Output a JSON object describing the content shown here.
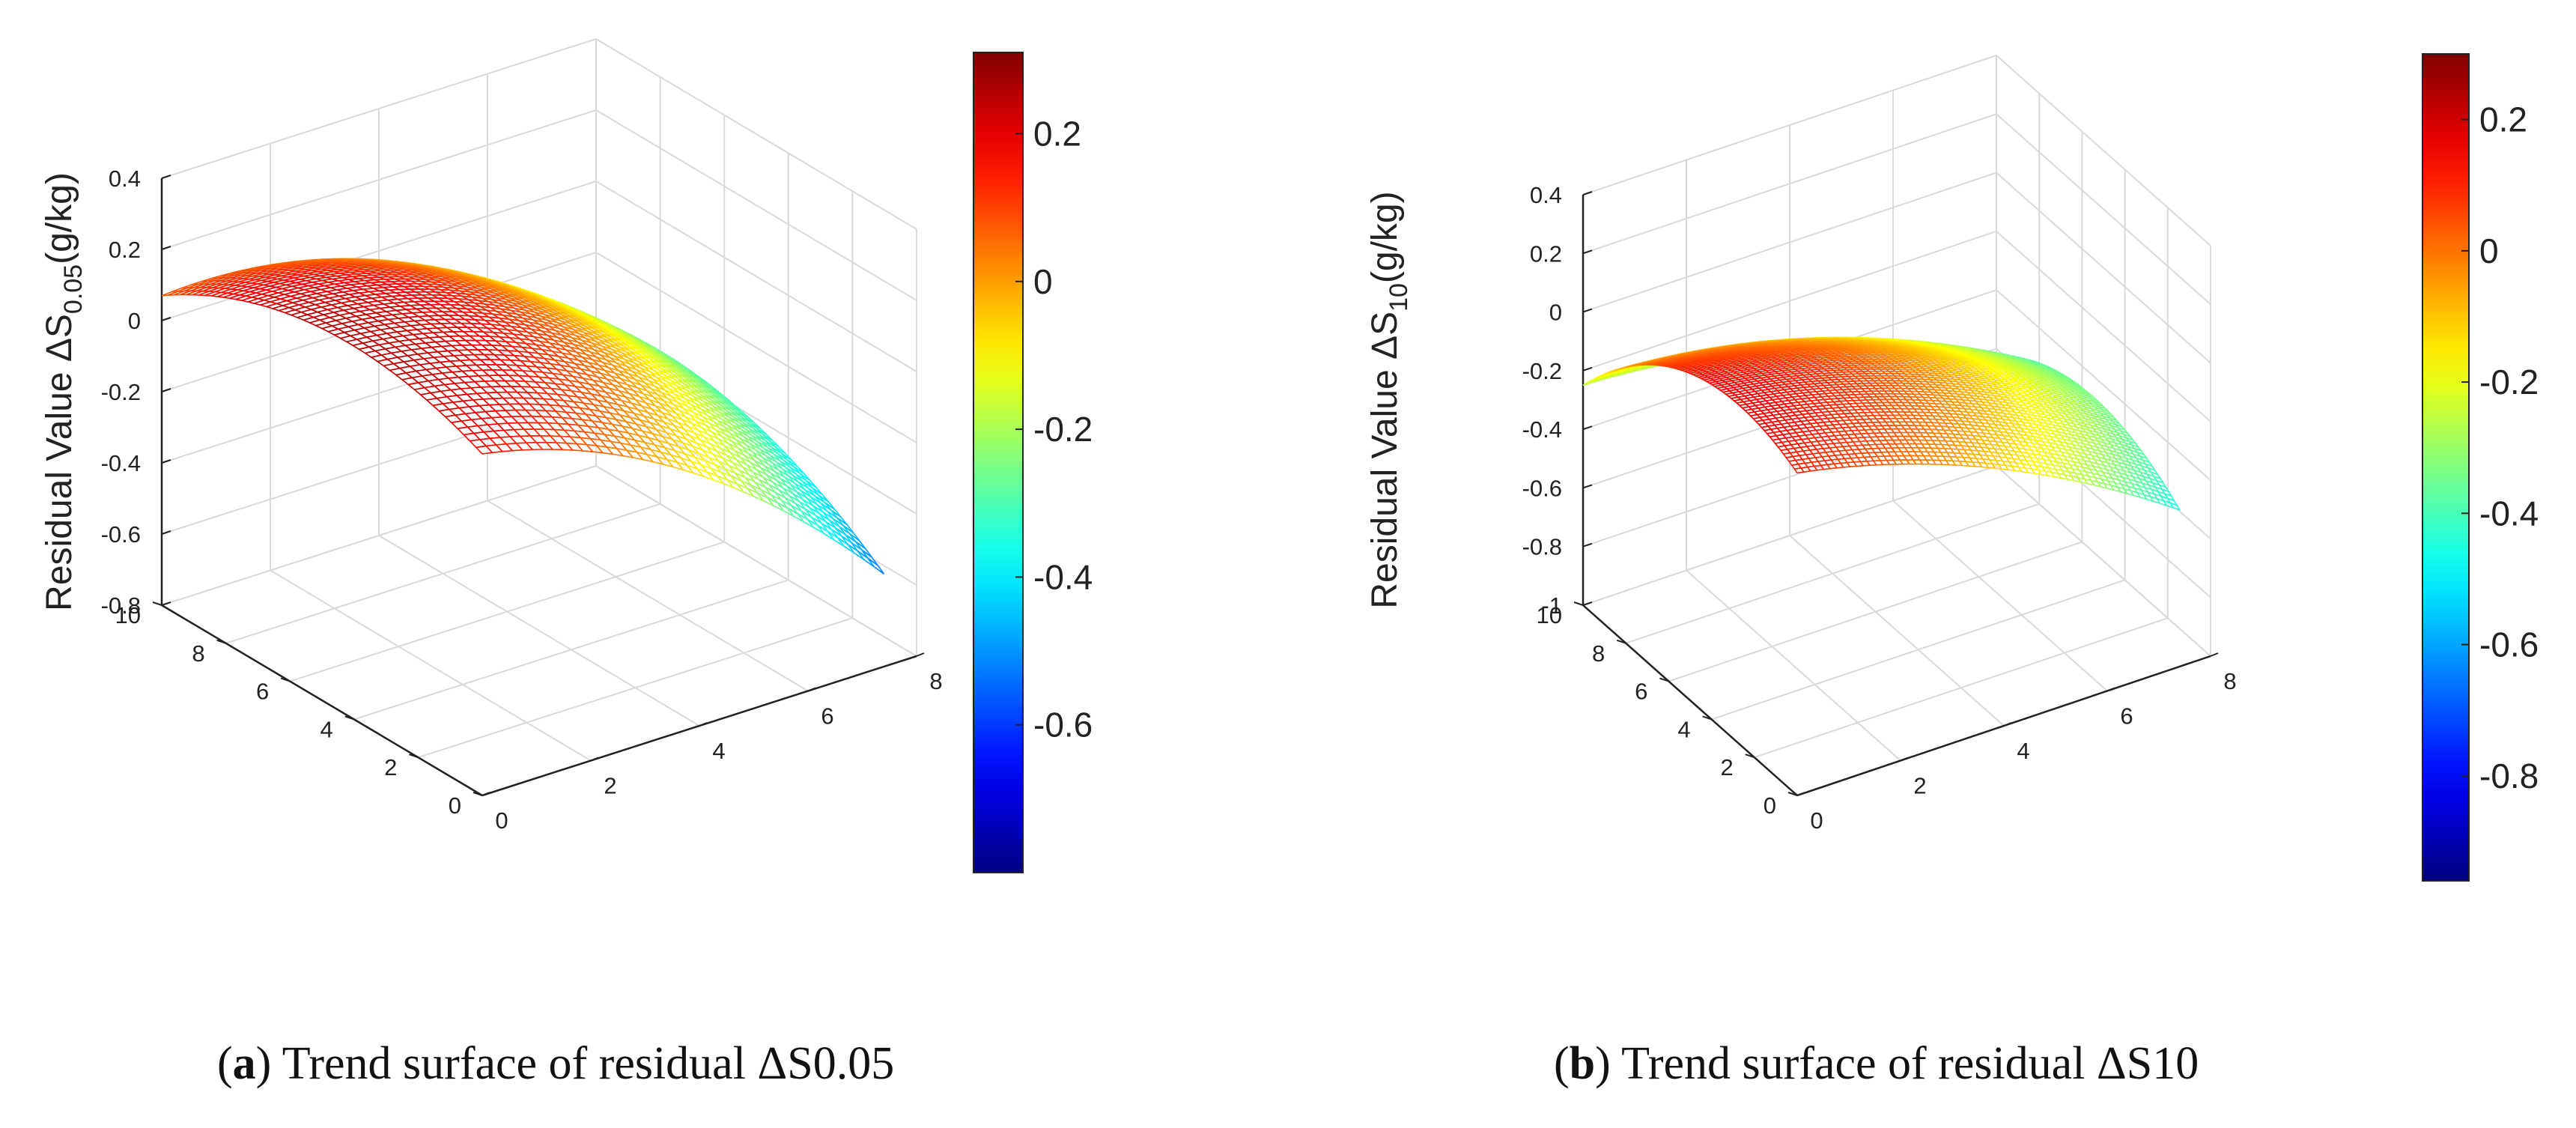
{
  "colors": {
    "grid": "#d9d9d9",
    "axis": "#222222",
    "mesh_stroke": "#8a2a2a",
    "background": "#ffffff"
  },
  "colormap": "jet",
  "chart_data": [
    {
      "panel_label": "a",
      "caption": "Trend surface of residual ΔS0.05",
      "type": "surface3d",
      "zlabel": {
        "prefix": "Residual Value ΔS",
        "subscript": "0.05",
        "suffix": "(g/kg)"
      },
      "x_ticks": [
        "0",
        "2",
        "4",
        "6",
        "8"
      ],
      "y_ticks": [
        "0",
        "2",
        "4",
        "6",
        "8",
        "10"
      ],
      "z_ticks": [
        "-0.8",
        "-0.6",
        "-0.4",
        "-0.2",
        "0",
        "0.2",
        "0.4"
      ],
      "xlim": [
        0,
        8
      ],
      "ylim": [
        0,
        10
      ],
      "zlim": [
        -0.8,
        0.4
      ],
      "surface_x_range": [
        0,
        7.4
      ],
      "surface_y_range": [
        0,
        10
      ],
      "surface_poly": [
        0.16,
        -0.22,
        -0.58,
        -0.09,
        0.32,
        0.52
      ],
      "colorbar": {
        "ticks": [
          "0.2",
          "0",
          "-0.2",
          "-0.4",
          "-0.6"
        ],
        "min": -0.8,
        "max": 0.31
      },
      "mesh_resolution": [
        40,
        52
      ]
    },
    {
      "panel_label": "b",
      "caption": "Trend surface of residual ΔS10",
      "type": "surface3d",
      "zlabel": {
        "prefix": "Residual Value ΔS",
        "subscript": "10",
        "suffix": "(g/kg)"
      },
      "x_ticks": [
        "0",
        "2",
        "4",
        "6",
        "8"
      ],
      "y_ticks": [
        "0",
        "2",
        "4",
        "6",
        "8",
        "10"
      ],
      "z_ticks": [
        "-1",
        "-0.8",
        "-0.6",
        "-0.4",
        "-0.2",
        "0",
        "0.2",
        "0.4"
      ],
      "xlim": [
        0,
        8
      ],
      "ylim": [
        0,
        10
      ],
      "zlim": [
        -1,
        0.4
      ],
      "surface_x_range": [
        0,
        7.4
      ],
      "surface_y_range": [
        0,
        10
      ],
      "surface_poly": [
        0.1,
        -0.26,
        -0.38,
        -0.35,
        0.22,
        0.76
      ],
      "colorbar": {
        "ticks": [
          "0.2",
          "0",
          "-0.2",
          "-0.4",
          "-0.6",
          "-0.8"
        ],
        "min": -0.96,
        "max": 0.3
      },
      "mesh_resolution": [
        58,
        78
      ]
    }
  ]
}
